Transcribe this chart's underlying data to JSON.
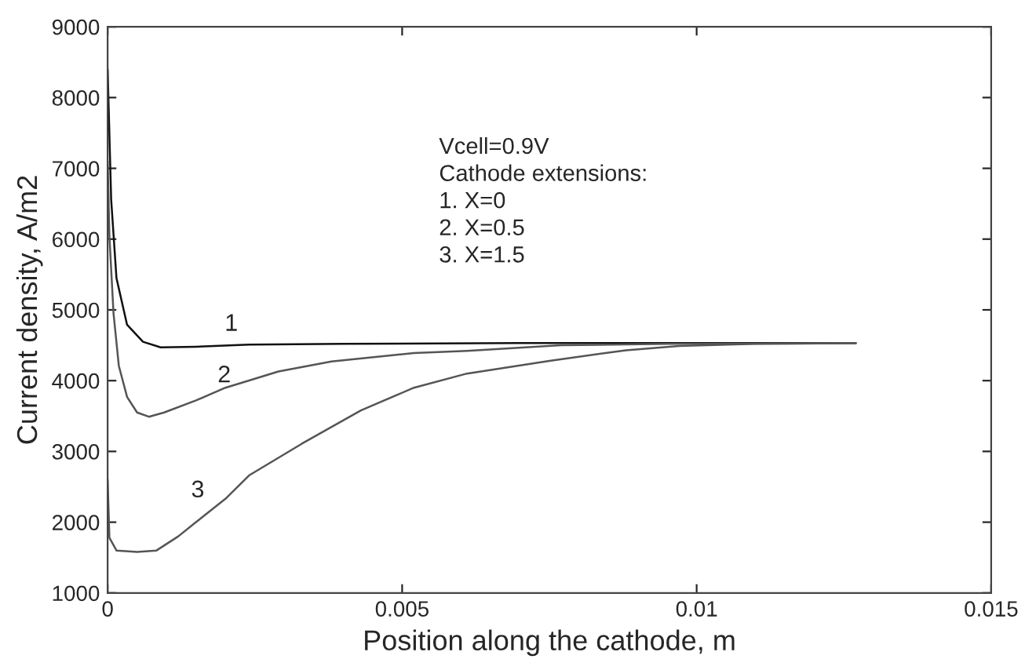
{
  "chart_data": {
    "type": "line",
    "xlabel": "Position along the cathode, m",
    "ylabel": "Current density, A/m2",
    "xlim": [
      0,
      0.015
    ],
    "ylim": [
      1000,
      9000
    ],
    "xticks": [
      0,
      0.005,
      0.01,
      0.015
    ],
    "yticks": [
      1000,
      2000,
      3000,
      4000,
      5000,
      6000,
      7000,
      8000,
      9000
    ],
    "grid": false,
    "marker": "none",
    "line_style": "solid",
    "series": [
      {
        "color": "#111111",
        "x": [
          0,
          6e-05,
          0.00015,
          0.00033,
          0.0006,
          0.0009,
          0.0015,
          0.0024,
          0.004,
          0.007,
          0.01,
          0.0127
        ],
        "values": [
          8400,
          6560,
          5450,
          4790,
          4550,
          4470,
          4480,
          4510,
          4520,
          4530,
          4530,
          4530
        ]
      },
      {
        "color": "#555555",
        "x": [
          0,
          3e-05,
          0.0001,
          0.00019,
          0.00033,
          0.0005,
          0.0007,
          0.00096,
          0.0015,
          0.002,
          0.0029,
          0.0038,
          0.0052,
          0.0061,
          0.0077,
          0.0095,
          0.0127
        ],
        "values": [
          7100,
          6050,
          4950,
          4210,
          3770,
          3550,
          3490,
          3550,
          3720,
          3900,
          4130,
          4270,
          4390,
          4420,
          4500,
          4520,
          4530
        ]
      },
      {
        "color": "#555555",
        "x": [
          0,
          3e-05,
          0.00015,
          0.0005,
          0.00083,
          0.0012,
          0.0015,
          0.002,
          0.0024,
          0.0029,
          0.0033,
          0.0043,
          0.0052,
          0.0061,
          0.0075,
          0.0088,
          0.0097,
          0.011,
          0.0127
        ],
        "values": [
          2600,
          1780,
          1600,
          1580,
          1600,
          1800,
          2000,
          2330,
          2660,
          2910,
          3110,
          3580,
          3900,
          4100,
          4280,
          4430,
          4490,
          4520,
          4530
        ]
      }
    ],
    "annotations": [
      "1",
      "2",
      "3",
      "Vcell=0.9V\nCathode extensions:\n1. X=0\n2. X=0.5\n3. X=1.5"
    ]
  }
}
